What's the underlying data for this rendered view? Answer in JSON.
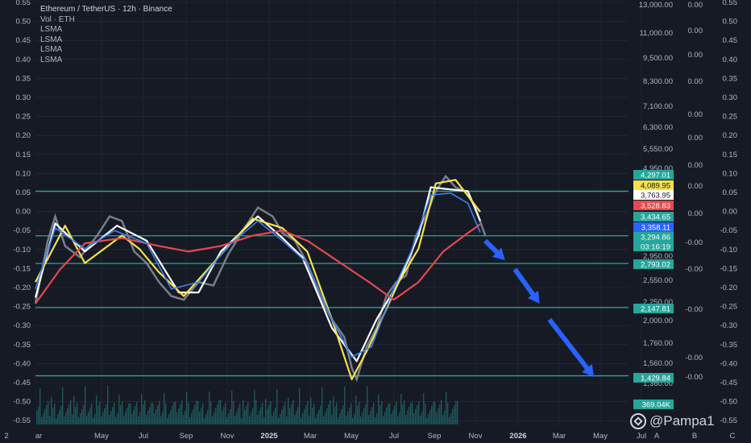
{
  "legend": {
    "title": "Ethereum / TetherUS · 12h · Binance",
    "vol": "Vol · ETH",
    "lsma": [
      "LSMA",
      "LSMA",
      "LSMA",
      "LSMA"
    ]
  },
  "watermark": {
    "text": "@Pampa1"
  },
  "colors": {
    "bg": "#161a25",
    "grid": "#2a2e39",
    "hline": "#26a69a",
    "white": "#ffffff",
    "yellow": "#f5e14a",
    "red": "#e5484d",
    "blue": "#3b82f6",
    "candle_green": "#26a69a",
    "candle_red": "#ef5350",
    "arrow": "#2962ff",
    "axis_text": "#b2b5be"
  },
  "chart_data": {
    "type": "line",
    "title": "Ethereum / TetherUS · 12h · Binance",
    "left_axis_ticks": [
      "0.55",
      "0.50",
      "0.45",
      "0.40",
      "0.35",
      "0.30",
      "0.25",
      "0.20",
      "0.15",
      "0.10",
      "0.05",
      "0.00",
      "-0.05",
      "-0.10",
      "-0.15",
      "-0.20",
      "-0.25",
      "-0.30",
      "-0.35",
      "-0.40",
      "-0.45",
      "-0.50",
      "-0.55"
    ],
    "price_axis_ticks": [
      "13,000.00",
      "11,000.00",
      "9,500.00",
      "8,300.00",
      "7,100.00",
      "6,300.00",
      "5,550.00",
      "4,950.00",
      "2,950.00",
      "2,550.00",
      "2,250.00",
      "2,000.00",
      "1,760.00",
      "1,560.00",
      "1,360.00"
    ],
    "osc_axis_ticks": [
      "0.00",
      "0.00",
      "0.00",
      "0.00",
      "0.00",
      "0.00",
      "0.00",
      "0.00",
      "0.00",
      "-0.00",
      "-0.00",
      "-0.00",
      "-0.00",
      "-0.00"
    ],
    "right_axis_ticks": [
      "0.55",
      "0.50",
      "0.45",
      "0.40",
      "0.35",
      "0.30",
      "0.25",
      "0.20",
      "0.15",
      "0.10",
      "0.05",
      "0.00",
      "-0.05",
      "-0.10",
      "-0.15",
      "-0.20",
      "-0.25",
      "-0.30",
      "-0.35",
      "-0.40",
      "-0.45",
      "-0.50",
      "-0.55"
    ],
    "x_ticks": [
      "2",
      "ar",
      "May",
      "Jul",
      "Sep",
      "Nov",
      "2025",
      "Mar",
      "May",
      "Jul",
      "Sep",
      "Nov",
      "2026",
      "Mar",
      "May",
      "Jul"
    ],
    "right_corner": [
      "A",
      "B",
      "C"
    ],
    "price_labels": [
      {
        "text": "4,297.01",
        "kind": "green"
      },
      {
        "text": "4,089.95",
        "kind": "yellow"
      },
      {
        "text": "3,763.95",
        "kind": "white"
      },
      {
        "text": "3,528.83",
        "kind": "red"
      },
      {
        "text": "3,434.65",
        "kind": "green"
      },
      {
        "text": "3,358.11",
        "kind": "blue"
      },
      {
        "text": "3,294.86",
        "kind": "green"
      },
      {
        "text": "03:16:19",
        "kind": "green"
      },
      {
        "text": "2,793.02",
        "kind": "green"
      },
      {
        "text": "2,147.81",
        "kind": "green"
      },
      {
        "text": "1,429.84",
        "kind": "green"
      },
      {
        "text": "369.04K",
        "kind": "green"
      }
    ],
    "horizontal_levels": [
      4297.01,
      3294.86,
      2793.02,
      2147.81,
      1429.84
    ],
    "series": [
      {
        "key": "white",
        "points": [
          [
            2024.0,
            2280
          ],
          [
            2024.08,
            3550
          ],
          [
            2024.2,
            3000
          ],
          [
            2024.33,
            3500
          ],
          [
            2024.45,
            3200
          ],
          [
            2024.58,
            2350
          ],
          [
            2024.66,
            2350
          ],
          [
            2024.75,
            3000
          ],
          [
            2024.9,
            3700
          ],
          [
            2025.0,
            3250
          ],
          [
            2025.08,
            2900
          ],
          [
            2025.2,
            1900
          ],
          [
            2025.3,
            1560
          ],
          [
            2025.38,
            2000
          ],
          [
            2025.47,
            2500
          ],
          [
            2025.55,
            3300
          ],
          [
            2025.6,
            4400
          ],
          [
            2025.67,
            4350
          ],
          [
            2025.75,
            4300
          ],
          [
            2025.8,
            3600
          ]
        ]
      },
      {
        "key": "yellow",
        "points": [
          [
            2024.0,
            2500
          ],
          [
            2024.12,
            3500
          ],
          [
            2024.2,
            2800
          ],
          [
            2024.35,
            3300
          ],
          [
            2024.42,
            3050
          ],
          [
            2024.5,
            2650
          ],
          [
            2024.6,
            2300
          ],
          [
            2024.72,
            2800
          ],
          [
            2024.88,
            3650
          ],
          [
            2025.0,
            3450
          ],
          [
            2025.1,
            3000
          ],
          [
            2025.2,
            2000
          ],
          [
            2025.28,
            1400
          ],
          [
            2025.35,
            1700
          ],
          [
            2025.47,
            2500
          ],
          [
            2025.55,
            3050
          ],
          [
            2025.62,
            4500
          ],
          [
            2025.7,
            4600
          ],
          [
            2025.8,
            3800
          ]
        ]
      },
      {
        "key": "red",
        "points": [
          [
            2024.0,
            2200
          ],
          [
            2024.1,
            2700
          ],
          [
            2024.2,
            3150
          ],
          [
            2024.35,
            3250
          ],
          [
            2024.5,
            3100
          ],
          [
            2024.62,
            3000
          ],
          [
            2024.75,
            3100
          ],
          [
            2024.88,
            3300
          ],
          [
            2025.0,
            3400
          ],
          [
            2025.1,
            3200
          ],
          [
            2025.2,
            2900
          ],
          [
            2025.35,
            2500
          ],
          [
            2025.45,
            2250
          ],
          [
            2025.55,
            2500
          ],
          [
            2025.65,
            3000
          ],
          [
            2025.75,
            3350
          ],
          [
            2025.8,
            3530
          ]
        ]
      },
      {
        "key": "blue",
        "points": [
          [
            2024.0,
            2400
          ],
          [
            2024.08,
            3450
          ],
          [
            2024.2,
            3050
          ],
          [
            2024.32,
            3400
          ],
          [
            2024.45,
            3150
          ],
          [
            2024.55,
            2400
          ],
          [
            2024.66,
            2500
          ],
          [
            2024.78,
            3100
          ],
          [
            2024.9,
            3600
          ],
          [
            2025.0,
            3200
          ],
          [
            2025.1,
            2800
          ],
          [
            2025.2,
            2000
          ],
          [
            2025.28,
            1600
          ],
          [
            2025.36,
            1700
          ],
          [
            2025.45,
            2400
          ],
          [
            2025.52,
            3000
          ],
          [
            2025.6,
            4200
          ],
          [
            2025.68,
            4250
          ],
          [
            2025.75,
            4000
          ],
          [
            2025.8,
            3360
          ]
        ]
      }
    ],
    "price_path": [
      [
        2024.0,
        2200
      ],
      [
        2024.05,
        3200
      ],
      [
        2024.08,
        3700
      ],
      [
        2024.12,
        3100
      ],
      [
        2024.18,
        2900
      ],
      [
        2024.25,
        3300
      ],
      [
        2024.3,
        3700
      ],
      [
        2024.35,
        3600
      ],
      [
        2024.4,
        3000
      ],
      [
        2024.45,
        2800
      ],
      [
        2024.5,
        2500
      ],
      [
        2024.55,
        2300
      ],
      [
        2024.6,
        2250
      ],
      [
        2024.66,
        2500
      ],
      [
        2024.72,
        2450
      ],
      [
        2024.78,
        2950
      ],
      [
        2024.84,
        3400
      ],
      [
        2024.9,
        3900
      ],
      [
        2024.96,
        3700
      ],
      [
        2025.0,
        3350
      ],
      [
        2025.05,
        3200
      ],
      [
        2025.1,
        2800
      ],
      [
        2025.15,
        2300
      ],
      [
        2025.2,
        2000
      ],
      [
        2025.25,
        1800
      ],
      [
        2025.28,
        1500
      ],
      [
        2025.3,
        1400
      ],
      [
        2025.34,
        1700
      ],
      [
        2025.38,
        1900
      ],
      [
        2025.42,
        2300
      ],
      [
        2025.46,
        2500
      ],
      [
        2025.5,
        2600
      ],
      [
        2025.54,
        3300
      ],
      [
        2025.58,
        3700
      ],
      [
        2025.62,
        4300
      ],
      [
        2025.66,
        4700
      ],
      [
        2025.7,
        4400
      ],
      [
        2025.74,
        4300
      ],
      [
        2025.78,
        3900
      ],
      [
        2025.82,
        3300
      ]
    ],
    "arrows": [
      [
        [
          2025.82,
          3200
        ],
        [
          2025.9,
          2850
        ]
      ],
      [
        [
          2025.94,
          2700
        ],
        [
          2026.04,
          2200
        ]
      ],
      [
        [
          2026.08,
          2000
        ],
        [
          2026.26,
          1420
        ]
      ]
    ],
    "x_range": [
      2024.0,
      2026.4
    ]
  }
}
